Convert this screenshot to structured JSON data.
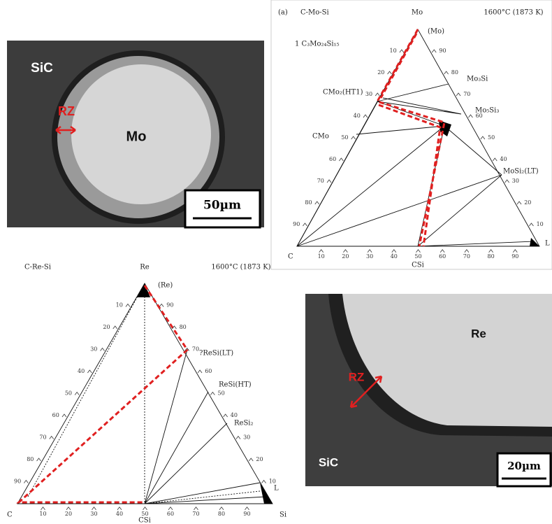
{
  "micrograph_mo": {
    "matrix": "SiC",
    "zone": "RZ",
    "particle": "Mo",
    "scale_bar": "50µm"
  },
  "diagram_mo": {
    "panel_label": "(a)",
    "system": "C-Mo-Si",
    "apex": "Mo",
    "temperature": "1600°C (1873 K)",
    "phases": [
      "1 C₃Mo₂₄Si₁₅",
      "(Mo)",
      "Mo₃Si",
      "CMo₂(HT1)",
      "Mo₅Si₃",
      "CMo",
      "MoSi₂(LT)"
    ],
    "corner_left": "C",
    "corner_right": "L",
    "bottom_mid": "CSi",
    "left_ticks": [
      10,
      20,
      30,
      40,
      50,
      60,
      70,
      80,
      90
    ],
    "right_ticks": [
      10,
      20,
      30,
      40,
      50,
      60,
      70,
      80,
      90
    ],
    "bottom_ticks": [
      10,
      20,
      30,
      40,
      50,
      60,
      70,
      80,
      90
    ]
  },
  "diagram_re": {
    "system": "C-Re-Si",
    "apex": "Re",
    "temperature": "1600°C (1873 K)",
    "phases": [
      "(Re)",
      "?ReSi(LT)",
      "ReSi(HT)",
      "ReSi₂",
      "L"
    ],
    "corner_left": "C",
    "corner_right": "Si",
    "bottom_mid": "CSi",
    "left_ticks": [
      10,
      20,
      30,
      40,
      50,
      60,
      70,
      80,
      90
    ],
    "right_ticks": [
      10,
      20,
      30,
      40,
      50,
      60,
      70,
      80,
      90
    ],
    "bottom_ticks": [
      10,
      20,
      30,
      40,
      50,
      60,
      70,
      80,
      90
    ]
  },
  "micrograph_re": {
    "particle": "Re",
    "zone": "RZ",
    "matrix": "SiC",
    "scale_bar": "20µm"
  }
}
